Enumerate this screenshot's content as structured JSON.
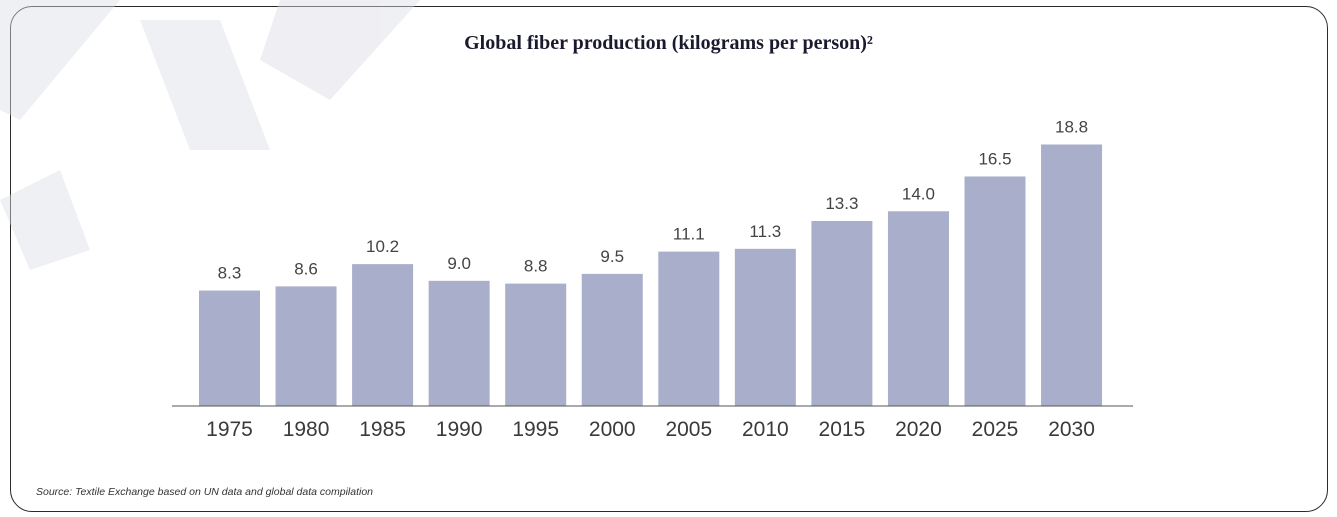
{
  "chart_data": {
    "type": "bar",
    "title": "Global fiber production (kilograms per person)²",
    "categories": [
      "1975",
      "1980",
      "1985",
      "1990",
      "1995",
      "2000",
      "2005",
      "2010",
      "2015",
      "2020",
      "2025",
      "2030"
    ],
    "values": [
      8.3,
      8.6,
      10.2,
      9.0,
      8.8,
      9.5,
      11.1,
      11.3,
      13.3,
      14.0,
      16.5,
      18.8
    ],
    "value_labels": [
      "8.3",
      "8.6",
      "10.2",
      "9.0",
      "8.8",
      "9.5",
      "11.1",
      "11.3",
      "13.3",
      "14.0",
      "16.5",
      "18.8"
    ],
    "xlabel": "",
    "ylabel": "",
    "ylim": [
      0,
      20
    ],
    "grid": false,
    "legend": "none",
    "bar_color": "#a9afca"
  },
  "source_note": "Source: Textile Exchange based on UN data and global data compilation"
}
